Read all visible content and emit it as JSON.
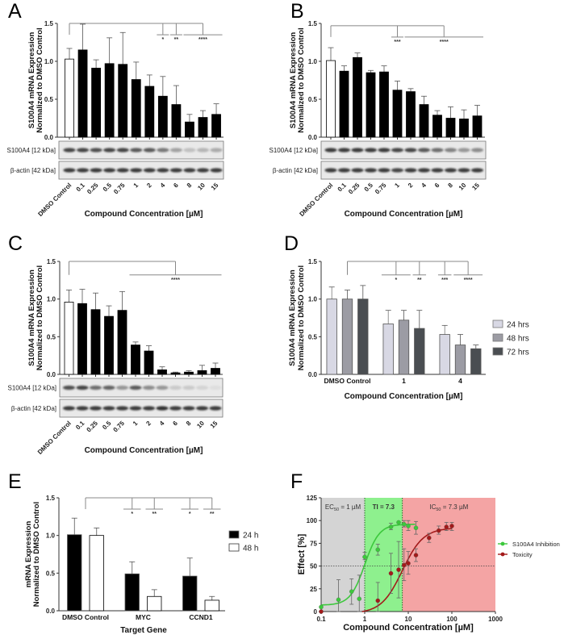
{
  "chart_data": [
    {
      "panel": "A",
      "type": "bar",
      "categories": [
        "DMSO Control",
        "0.1",
        "0.25",
        "0.5",
        "0.75",
        "1",
        "2",
        "4",
        "6",
        "8",
        "10",
        "15"
      ],
      "series": [
        {
          "values": [
            1.03,
            1.15,
            0.91,
            0.97,
            0.96,
            0.76,
            0.67,
            0.54,
            0.43,
            0.2,
            0.26,
            0.3
          ],
          "error_upper": [
            0.14,
            0.34,
            0.11,
            0.34,
            0.42,
            0.23,
            0.15,
            0.26,
            0.25,
            0.1,
            0.09,
            0.14
          ]
        }
      ],
      "control_fill": "#ffffff",
      "fill": "#000000",
      "ylabel": [
        "S100A4 mRNA Expression",
        "Normalized to DMSO Control"
      ],
      "xlabel": "Compound Concentration [µM]",
      "ylim": [
        0,
        1.5
      ],
      "yticks": [
        "0.0",
        "0.5",
        "1.0",
        "1.5"
      ],
      "significance": [
        {
          "label": "*",
          "from": 7,
          "to": 7
        },
        {
          "label": "**",
          "from": 8,
          "to": 8
        },
        {
          "label": "****",
          "from": 9,
          "to": 11
        }
      ],
      "blots": [
        {
          "label": "S100A4 [12 kDa]",
          "intensity": [
            0.8,
            0.8,
            0.75,
            0.8,
            0.8,
            0.7,
            0.7,
            0.55,
            0.35,
            0.2,
            0.25,
            0.3
          ]
        },
        {
          "label": "β-actin [42 kDa]",
          "intensity": [
            0.85,
            0.85,
            0.85,
            0.85,
            0.85,
            0.85,
            0.85,
            0.85,
            0.85,
            0.85,
            0.85,
            0.85
          ]
        }
      ]
    },
    {
      "panel": "B",
      "type": "bar",
      "categories": [
        "DMSO Control",
        "0.1",
        "0.25",
        "0.5",
        "0.75",
        "1",
        "2",
        "4",
        "6",
        "8",
        "10",
        "15"
      ],
      "series": [
        {
          "values": [
            1.01,
            0.87,
            1.05,
            0.85,
            0.86,
            0.62,
            0.6,
            0.43,
            0.29,
            0.25,
            0.24,
            0.28
          ],
          "error_upper": [
            0.17,
            0.07,
            0.06,
            0.03,
            0.08,
            0.12,
            0.04,
            0.11,
            0.06,
            0.15,
            0.12,
            0.14
          ]
        }
      ],
      "control_fill": "#ffffff",
      "fill": "#000000",
      "ylabel": [
        "S100A4 mRNA Expression",
        "Normalized to DMSO Control"
      ],
      "xlabel": "Compound Concentration [µM]",
      "ylim": [
        0,
        1.5
      ],
      "yticks": [
        "0.0",
        "0.5",
        "1.0",
        "1.5"
      ],
      "significance": [
        {
          "label": "***",
          "from": 5,
          "to": 5
        },
        {
          "label": "****",
          "from": 6,
          "to": 11
        }
      ],
      "blots": [
        {
          "label": "S100A4 [12 kDa]",
          "intensity": [
            0.85,
            0.85,
            0.85,
            0.85,
            0.85,
            0.8,
            0.8,
            0.7,
            0.6,
            0.5,
            0.4,
            0.45
          ]
        },
        {
          "label": "β-actin [42 kDa]",
          "intensity": [
            0.85,
            0.85,
            0.85,
            0.85,
            0.85,
            0.8,
            0.85,
            0.85,
            0.85,
            0.85,
            0.85,
            0.85
          ]
        }
      ]
    },
    {
      "panel": "C",
      "type": "bar",
      "categories": [
        "DMSO Control",
        "0.1",
        "0.25",
        "0.5",
        "0.75",
        "1",
        "2",
        "4",
        "6",
        "8",
        "10",
        "15"
      ],
      "series": [
        {
          "values": [
            0.96,
            0.94,
            0.86,
            0.77,
            0.85,
            0.39,
            0.31,
            0.06,
            0.02,
            0.03,
            0.05,
            0.08
          ],
          "error_upper": [
            0.16,
            0.19,
            0.22,
            0.14,
            0.25,
            0.04,
            0.07,
            0.04,
            0.01,
            0.02,
            0.07,
            0.07
          ]
        }
      ],
      "control_fill": "#ffffff",
      "fill": "#000000",
      "ylabel": [
        "S100A4 mRNA Expression",
        "Normalized to DMSO Control"
      ],
      "xlabel": "Compound Concentration [µM]",
      "ylim": [
        0,
        1.5
      ],
      "yticks": [
        "0.0",
        "0.5",
        "1.0",
        "1.5"
      ],
      "significance": [
        {
          "label": "****",
          "from": 5,
          "to": 11
        }
      ],
      "blots": [
        {
          "label": "S100A4 [12 kDa]",
          "intensity": [
            0.75,
            0.8,
            0.6,
            0.65,
            0.4,
            0.7,
            0.45,
            0.4,
            0.15,
            0.15,
            0.1,
            0.05
          ]
        },
        {
          "label": "β-actin [42 kDa]",
          "intensity": [
            0.85,
            0.85,
            0.85,
            0.85,
            0.85,
            0.85,
            0.85,
            0.9,
            0.85,
            0.85,
            0.85,
            0.85
          ]
        }
      ]
    },
    {
      "panel": "D",
      "type": "bar",
      "categories": [
        "DMSO Control",
        "1",
        "4"
      ],
      "series": [
        {
          "name": "24 hrs",
          "color": "#d8d8e4",
          "values": [
            1.0,
            0.67,
            0.53
          ],
          "error_upper": [
            0.16,
            0.18,
            0.12
          ]
        },
        {
          "name": "48 hrs",
          "color": "#9c9ca4",
          "values": [
            1.0,
            0.72,
            0.39
          ],
          "error_upper": [
            0.12,
            0.13,
            0.14
          ]
        },
        {
          "name": "72 hrs",
          "color": "#4a4e52",
          "values": [
            1.0,
            0.61,
            0.34
          ],
          "error_upper": [
            0.18,
            0.24,
            0.05
          ]
        }
      ],
      "ylabel": [
        "S100A4 mRNA Expression",
        "Normalized to DMSO Control"
      ],
      "xlabel": "Compound Concentration [µM]",
      "ylim": [
        0,
        1.5
      ],
      "yticks": [
        "0.0",
        "0.5",
        "1.0",
        "1.5"
      ],
      "legend": "right",
      "significance": [
        {
          "label": "*",
          "cat": 1,
          "series": [
            0,
            1
          ]
        },
        {
          "label": "**",
          "cat": 1,
          "series": [
            2,
            2
          ]
        },
        {
          "label": "***",
          "cat": 2,
          "series": [
            0,
            0
          ]
        },
        {
          "label": "****",
          "cat": 2,
          "series": [
            1,
            2
          ]
        }
      ]
    },
    {
      "panel": "E",
      "type": "bar",
      "categories": [
        "DMSO Control",
        "MYC",
        "CCND1"
      ],
      "series": [
        {
          "name": "24 h",
          "color": "#000000",
          "values": [
            1.01,
            0.49,
            0.46
          ],
          "error_upper": [
            0.22,
            0.16,
            0.24
          ]
        },
        {
          "name": "48 h",
          "color": "#ffffff",
          "values": [
            1.0,
            0.19,
            0.14
          ],
          "error_upper": [
            0.1,
            0.09,
            0.05
          ]
        }
      ],
      "ylabel": [
        "mRNA Expression",
        "Normalized to DMSO Control"
      ],
      "xlabel": "Target Gene",
      "ylim": [
        0,
        1.5
      ],
      "yticks": [
        "0.0",
        "0.5",
        "1.0",
        "1.5"
      ],
      "legend": "right",
      "significance": [
        {
          "label": "*",
          "cat": 1,
          "series": [
            0,
            0
          ]
        },
        {
          "label": "**",
          "cat": 1,
          "series": [
            1,
            1
          ]
        },
        {
          "label": "*",
          "cat": 2,
          "series": [
            0,
            0
          ]
        },
        {
          "label": "**",
          "cat": 2,
          "series": [
            1,
            1
          ]
        }
      ]
    },
    {
      "panel": "F",
      "type": "scatter",
      "xscale": "log",
      "xlim": [
        0.1,
        1000
      ],
      "ylim": [
        0,
        125
      ],
      "xticks": [
        "0.1",
        "1",
        "10",
        "100",
        "1000"
      ],
      "yticks": [
        "0",
        "25",
        "50",
        "75",
        "100",
        "125"
      ],
      "xlabel": "Compound Concentration [µM]",
      "ylabel": "Effect [%]",
      "legend": "right",
      "series": [
        {
          "name": "S100A4 Inhibition",
          "color": "#3cc83c",
          "x": [
            0.1,
            0.25,
            0.5,
            0.75,
            1,
            2,
            4,
            6,
            8,
            10,
            15
          ],
          "y": [
            5,
            13,
            22,
            14,
            60,
            68,
            93,
            98,
            96,
            94,
            92
          ],
          "err_low": [
            0,
            13,
            14,
            14,
            3,
            6,
            3,
            0,
            3,
            5,
            7
          ],
          "err_high": [
            0,
            22,
            14,
            26,
            5,
            6,
            4,
            0,
            4,
            6,
            7
          ],
          "fit": {
            "bottom": 7,
            "top": 96,
            "ec50": 1.0,
            "hill": 2.6
          }
        },
        {
          "name": "Toxicity",
          "color": "#a31a1a",
          "x": [
            0.1,
            2,
            4,
            6,
            8,
            10,
            15,
            30,
            50,
            75,
            100
          ],
          "y": [
            0,
            12,
            42,
            46,
            51,
            53,
            62,
            81,
            89,
            93,
            94
          ],
          "err_low": [
            0,
            12,
            22,
            31,
            17,
            12,
            7,
            5,
            4,
            4,
            5
          ],
          "err_high": [
            0,
            20,
            22,
            31,
            18,
            13,
            7,
            5,
            5,
            5,
            4
          ],
          "fit": {
            "bottom": -2,
            "top": 92,
            "ec50": 7.3,
            "hill": 1.8
          }
        }
      ],
      "regions": [
        {
          "from": 0.1,
          "to": 1,
          "color": "#d4d4d4",
          "label": {
            "prefix": "EC",
            "sub": "50",
            "suffix": " = 1 µM"
          }
        },
        {
          "from": 1,
          "to": 7.3,
          "color": "#8ef08e",
          "label": {
            "prefix": "TI = 7.3",
            "sub": "",
            "suffix": ""
          }
        },
        {
          "from": 7.3,
          "to": 1000,
          "color": "#f4a4a4",
          "label": {
            "prefix": "IC",
            "sub": "50",
            "suffix": " = 7.3 µM"
          }
        }
      ],
      "reference_lines": {
        "x": [
          1,
          7.3
        ],
        "y": [
          50
        ]
      }
    }
  ]
}
